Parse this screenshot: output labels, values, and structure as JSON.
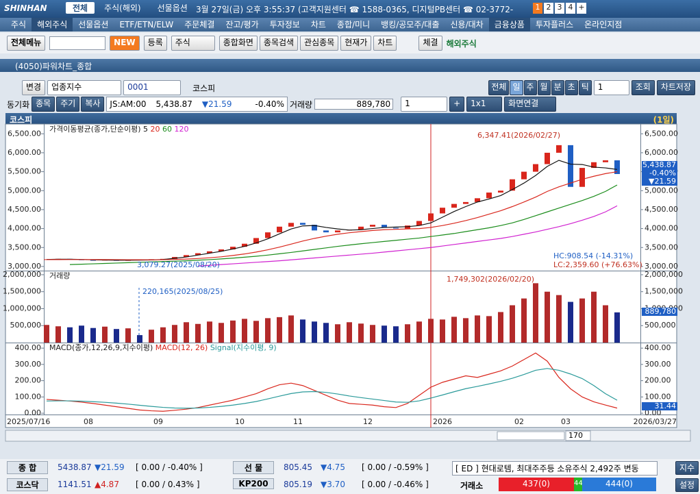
{
  "topbar": {
    "logo": "SHINHAN",
    "tabs": [
      "전체",
      "주식(해외)",
      "선물옵션"
    ],
    "status": "3월 27일(금) 오후 3:55:37 (고객지원센터 ☎ 1588-0365, 디지털PB센터 ☎ 02-3772-",
    "screens": [
      "1",
      "2",
      "3",
      "4",
      "+"
    ]
  },
  "menu": [
    "주식",
    "해외주식",
    "선물옵션",
    "ETF/ETN/ELW",
    "주문체결",
    "잔고/평가",
    "투자정보",
    "차트",
    "종합/미니",
    "뱅킹/공모주/대출",
    "신용/대차",
    "금융상품",
    "투자플러스",
    "온라인지점"
  ],
  "toolbar": {
    "all_menu": "전체메뉴",
    "new": "NEW",
    "register": "등록",
    "kind": "주식",
    "buttons": [
      "종합화면",
      "종목검색",
      "관심종목",
      "현재가",
      "차트"
    ],
    "fill": "체결",
    "overseas": "해외주식"
  },
  "window_title": "(4050)파워차트_종합",
  "controls": {
    "change": "변경",
    "index_type": "업종지수",
    "code": "0001",
    "name": "코스피",
    "periods": [
      "전체",
      "일",
      "주",
      "월",
      "분",
      "초",
      "틱"
    ],
    "count": "1",
    "query": "조회",
    "save": "차트저장",
    "sync": "동기화",
    "sync_buttons": [
      "종목",
      "주기",
      "복사"
    ],
    "time": "JS:AM:00",
    "price": "5,438.87",
    "change_value": "▼21.59",
    "rate": "-0.40%",
    "volume_label": "거래량",
    "volume": "889,780",
    "split": "1",
    "plus": "+",
    "layout": "1x1",
    "link": "화면연결"
  },
  "panel": {
    "name": "코스피",
    "period": "(1일)"
  },
  "chart_data": [
    {
      "type": "candlestick",
      "title": "가격이동평균(종가,단순이평)",
      "up_color": "#d9261c",
      "down_color": "#1f5fc4",
      "categories": [
        "2025/07/16",
        null,
        null,
        "08",
        null,
        null,
        null,
        null,
        null,
        "09",
        null,
        null,
        null,
        null,
        null,
        null,
        "10",
        null,
        null,
        null,
        null,
        "11",
        null,
        null,
        null,
        null,
        null,
        "12",
        null,
        null,
        null,
        null,
        null,
        "2026",
        null,
        null,
        null,
        null,
        null,
        null,
        "02",
        null,
        null,
        null,
        "03",
        null,
        null,
        null,
        null,
        "2026/03/27"
      ],
      "values": [
        3190,
        3200,
        3185,
        3170,
        3160,
        3175,
        3150,
        3180,
        3165,
        3190,
        3200,
        3250,
        3300,
        3350,
        3400,
        3450,
        3520,
        3600,
        3750,
        3900,
        4050,
        4150,
        4100,
        3950,
        3900,
        3950,
        3970,
        4050,
        4100,
        4020,
        4000,
        4080,
        4200,
        4400,
        4550,
        4650,
        4700,
        4800,
        4950,
        5000,
        5300,
        5500,
        5700,
        6000,
        6200,
        5100,
        5600,
        5750,
        5800,
        5438.87
      ],
      "series": [
        {
          "name": "5",
          "color": "#111111",
          "values": [
            3185,
            3190,
            3190,
            3185,
            3175,
            3170,
            3165,
            3165,
            3168,
            3172,
            3185,
            3215,
            3250,
            3300,
            3350,
            3400,
            3460,
            3530,
            3620,
            3730,
            3860,
            3990,
            4070,
            4080,
            4030,
            3990,
            3960,
            3970,
            4000,
            4030,
            4040,
            4050,
            4080,
            4150,
            4300,
            4450,
            4580,
            4700,
            4780,
            4870,
            5030,
            5200,
            5400,
            5640,
            5800,
            5700,
            5690,
            5620,
            5600,
            5560
          ]
        },
        {
          "name": "20",
          "color": "#d9261c",
          "values": [
            3180,
            3182,
            3183,
            3183,
            3182,
            3181,
            3180,
            3178,
            3177,
            3176,
            3178,
            3185,
            3195,
            3210,
            3230,
            3255,
            3290,
            3330,
            3380,
            3440,
            3510,
            3590,
            3670,
            3740,
            3800,
            3850,
            3890,
            3920,
            3950,
            3970,
            3980,
            3990,
            4000,
            4030,
            4080,
            4140,
            4210,
            4290,
            4380,
            4470,
            4580,
            4700,
            4830,
            4980,
            5100,
            5200,
            5300,
            5380,
            5450,
            5500
          ]
        },
        {
          "name": "60",
          "color": "#1a8c1a",
          "values": [
            null,
            null,
            3050,
            3060,
            3070,
            3080,
            3090,
            3100,
            3110,
            3120,
            3130,
            3140,
            3150,
            3165,
            3180,
            3200,
            3220,
            3245,
            3270,
            3300,
            3335,
            3370,
            3410,
            3450,
            3490,
            3530,
            3565,
            3600,
            3630,
            3660,
            3690,
            3720,
            3750,
            3790,
            3830,
            3870,
            3920,
            3970,
            4020,
            4080,
            4150,
            4240,
            4340,
            4440,
            4540,
            4640,
            4740,
            4850,
            4980,
            5150
          ]
        },
        {
          "name": "120",
          "color": "#d020d0",
          "values": [
            null,
            null,
            null,
            null,
            null,
            null,
            null,
            null,
            null,
            null,
            null,
            null,
            null,
            3010,
            3030,
            3050,
            3070,
            3090,
            3110,
            3130,
            3150,
            3175,
            3200,
            3225,
            3250,
            3275,
            3300,
            3325,
            3350,
            3380,
            3410,
            3440,
            3470,
            3500,
            3540,
            3580,
            3620,
            3660,
            3700,
            3740,
            3790,
            3850,
            3910,
            3980,
            4050,
            4130,
            4220,
            4320,
            4440,
            4600
          ]
        }
      ],
      "ylim": [
        2890,
        6740
      ],
      "yticks": [
        {
          "value": 3000,
          "label": "3,000.00"
        },
        {
          "value": 3500,
          "label": "3,500.00"
        },
        {
          "value": 4000,
          "label": "4,000.00"
        },
        {
          "value": 4500,
          "label": "4,500.00"
        },
        {
          "value": 5000,
          "label": "5,000.00"
        },
        {
          "value": 5500,
          "label": "5,500.00"
        },
        {
          "value": 6000,
          "label": "6,000.00"
        },
        {
          "value": 6500,
          "label": "6,500.00"
        }
      ],
      "annotations": {
        "high": "6,347.41(2026/02/27)",
        "low": "3,079.27(2025/08/20)",
        "hc": "HC:908.54 (-14.31%)",
        "lc": "LC:2,359.60 (+76.63%)"
      },
      "badge": [
        "5,438.87",
        "-0.40%",
        "▼21.59"
      ]
    },
    {
      "type": "bar",
      "title": "거래량",
      "up_color": "#b22a2a",
      "down_color": "#1a2a8c",
      "values": [
        520000,
        480000,
        450000,
        500000,
        430000,
        470000,
        400000,
        420000,
        220165,
        380000,
        450000,
        520000,
        600000,
        550000,
        620000,
        580000,
        650000,
        700000,
        640000,
        720000,
        750000,
        800000,
        680000,
        620000,
        580000,
        540000,
        600000,
        560000,
        520000,
        500000,
        480000,
        540000,
        620000,
        700000,
        680000,
        760000,
        720000,
        800000,
        780000,
        900000,
        1100000,
        1300000,
        1749302,
        1500000,
        1400000,
        1200000,
        1300000,
        1500000,
        1100000,
        889780
      ],
      "ylim": [
        0,
        2100000
      ],
      "yticks": [
        {
          "value": 500000,
          "label": "500,000"
        },
        {
          "value": 1000000,
          "label": "1,000,000"
        },
        {
          "value": 1500000,
          "label": "1,500,000"
        },
        {
          "value": 2000000,
          "label": "2,000,000"
        }
      ],
      "annotations": {
        "high": "1,749,302(2026/02/20)",
        "low": "220,165(2025/08/25)"
      },
      "badge": "889,780"
    },
    {
      "type": "line",
      "title": "MACD(종가,12,26,9,지수이평)",
      "series": [
        {
          "name": "MACD(12, 26)",
          "color": "#d9261c",
          "values": [
            85,
            80,
            75,
            68,
            60,
            50,
            40,
            30,
            20,
            15,
            12,
            18,
            25,
            35,
            50,
            65,
            80,
            100,
            120,
            150,
            175,
            185,
            170,
            140,
            110,
            80,
            60,
            55,
            50,
            40,
            35,
            60,
            110,
            160,
            190,
            210,
            230,
            220,
            240,
            260,
            290,
            330,
            370,
            320,
            220,
            150,
            100,
            70,
            50,
            31.44
          ]
        },
        {
          "name": "Signal(지수이평, 9)",
          "color": "#2a9a9a",
          "values": [
            75,
            76,
            76,
            74,
            71,
            67,
            62,
            56,
            49,
            42,
            36,
            32,
            31,
            32,
            36,
            42,
            50,
            60,
            72,
            88,
            105,
            121,
            131,
            133,
            128,
            118,
            106,
            96,
            87,
            78,
            69,
            67,
            76,
            93,
            112,
            132,
            151,
            165,
            180,
            196,
            215,
            238,
            264,
            275,
            264,
            241,
            213,
            170,
            120,
            80
          ]
        }
      ],
      "ylim": [
        -8,
        430
      ],
      "yticks": [
        {
          "value": 0,
          "label": "0.00"
        },
        {
          "value": 100,
          "label": "100.00"
        },
        {
          "value": 200,
          "label": "200.00"
        },
        {
          "value": 300,
          "label": "300.00"
        },
        {
          "value": 400,
          "label": "400.00"
        }
      ],
      "badge": "31.44"
    }
  ],
  "scroll": {
    "count": "170"
  },
  "status_bar": {
    "rows": [
      [
        {
          "name": "종 합",
          "value": "5438.87",
          "change": "▼21.59",
          "detail": "[ 0.00 / -0.40% ]"
        },
        {
          "name": "선 물",
          "value": "805.45",
          "change": "▼4.75",
          "detail": "[ 0.00 / -0.59% ]"
        }
      ],
      [
        {
          "name": "코스닥",
          "value": "1141.51",
          "change": "▲4.87",
          "detail": "[ 0.00 / 0.43% ]"
        },
        {
          "name": "KP200",
          "value": "805.19",
          "change": "▼3.70",
          "detail": "[ 0.00 / -0.46% ]"
        }
      ]
    ],
    "news": "[ ED ] 현대로템, 최대주주등 소유주식 2,492주 변동",
    "news_button": "지수",
    "market": "거래소",
    "up": "437(0)",
    "flat": "44",
    "down": "444(0)",
    "settings": "설정"
  }
}
